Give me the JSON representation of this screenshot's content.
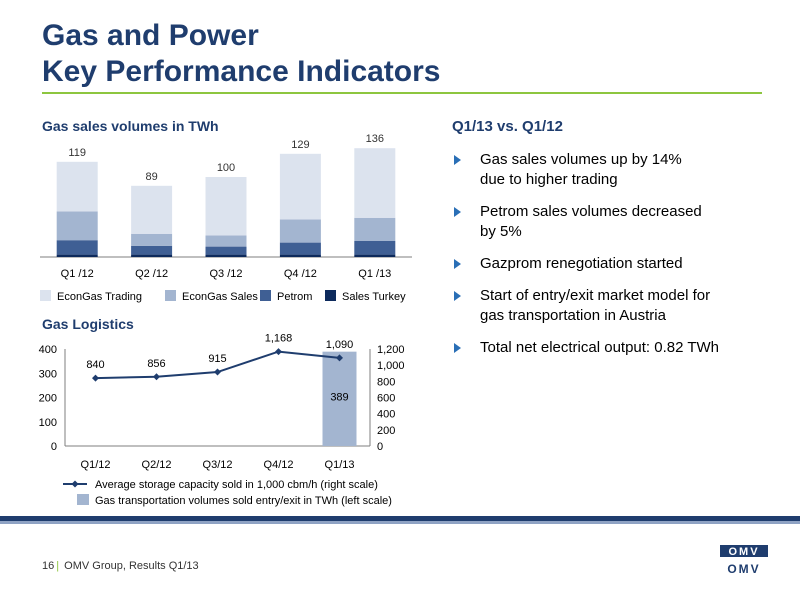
{
  "title": {
    "line1": "Gas and Power",
    "line2": "Key Performance Indicators"
  },
  "sales_section": {
    "heading": "Gas sales volumes in TWh"
  },
  "logistics_section": {
    "heading": "Gas Logistics"
  },
  "right_section": {
    "heading": "Q1/13 vs. Q1/12",
    "bullets": [
      {
        "line1": "Gas sales volumes up by 14%",
        "line2": "due to higher trading"
      },
      {
        "line1": "Petrom sales volumes decreased",
        "line2": "by 5%"
      },
      {
        "line1": "Gazprom renegotiation started",
        "line2": ""
      },
      {
        "line1": "Start of entry/exit market model for",
        "line2": "gas transportation in Austria"
      },
      {
        "line1": "Total net electrical output: 0.82 TWh",
        "line2": ""
      }
    ]
  },
  "footer": {
    "page": "16",
    "text": "OMV Group, Results Q1/13"
  },
  "logo": {
    "text": "OMV"
  },
  "colors": {
    "navy": "#1f3d6e",
    "green": "#8dc63f",
    "trading": "#dce3ee",
    "sales": "#a3b5d0",
    "petrom": "#3f5f94",
    "turkey": "#0d2a5c"
  },
  "chart_data": [
    {
      "type": "bar",
      "stacked": true,
      "categories": [
        "Q1 /12",
        "Q2 /12",
        "Q3 /12",
        "Q4 /12",
        "Q1 /13"
      ],
      "totals": [
        119,
        89,
        100,
        129,
        136
      ],
      "series": [
        {
          "name": "Sales Turkey",
          "color": "#0d2a5c",
          "values": [
            3,
            3,
            3,
            3,
            3
          ]
        },
        {
          "name": "Petrom",
          "color": "#3f5f94",
          "values": [
            18,
            11,
            10,
            15,
            17
          ]
        },
        {
          "name": "EconGas Sales",
          "color": "#a3b5d0",
          "values": [
            36,
            15,
            14,
            29,
            29
          ]
        },
        {
          "name": "EconGas Trading",
          "color": "#dce3ee",
          "values": [
            62,
            60,
            73,
            82,
            87
          ]
        }
      ],
      "legend_order": [
        "EconGas Trading",
        "EconGas Sales",
        "Petrom",
        "Sales Turkey"
      ],
      "ylim": [
        0,
        140
      ],
      "legend": "bottom"
    },
    {
      "type": "bar+line",
      "categories": [
        "Q1/12",
        "Q2/12",
        "Q3/12",
        "Q4/12",
        "Q1/13"
      ],
      "bar_series": {
        "name": "Gas transportation volumes sold entry/exit in TWh (left scale)",
        "values": [
          null,
          null,
          null,
          null,
          389
        ],
        "labels": [
          "",
          "",
          "",
          "",
          "389"
        ],
        "color": "#a3b5d0"
      },
      "line_series": {
        "name": "Average storage capacity sold in 1,000 cbm/h (right scale)",
        "values": [
          840,
          856,
          915,
          1168,
          1090
        ],
        "labels": [
          "840",
          "856",
          "915",
          "1,168",
          "1,090"
        ],
        "color": "#1f3d6e"
      },
      "left_axis": {
        "ticks": [
          "0",
          "100",
          "200",
          "300",
          "400"
        ],
        "range": [
          0,
          400
        ]
      },
      "right_axis": {
        "ticks": [
          "0",
          "200",
          "400",
          "600",
          "800",
          "1,000",
          "1,200"
        ],
        "range": [
          0,
          1200
        ]
      },
      "legend": "bottom"
    }
  ]
}
